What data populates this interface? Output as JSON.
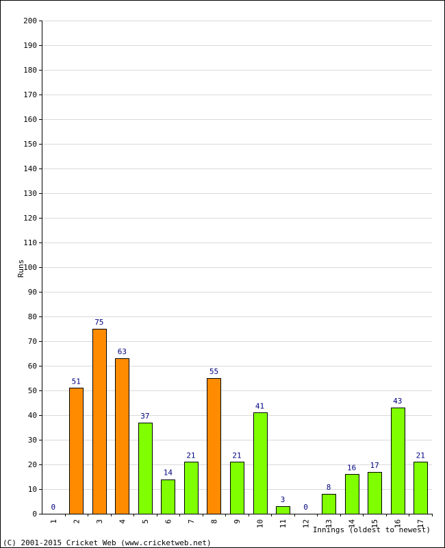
{
  "chart_data": {
    "type": "bar",
    "ylabel": "Runs",
    "xlabel": "Innings (oldest to newest)",
    "ylim": [
      0,
      200
    ],
    "ytick_step": 10,
    "grid": true,
    "categories": [
      "1",
      "2",
      "3",
      "4",
      "5",
      "6",
      "7",
      "8",
      "9",
      "10",
      "11",
      "12",
      "13",
      "14",
      "15",
      "16",
      "17"
    ],
    "values": [
      0,
      51,
      75,
      63,
      37,
      14,
      21,
      55,
      21,
      41,
      3,
      0,
      8,
      16,
      17,
      43,
      21
    ],
    "fifty_plus": [
      false,
      true,
      true,
      true,
      false,
      false,
      false,
      true,
      false,
      false,
      false,
      false,
      false,
      false,
      false,
      false,
      false
    ],
    "colors": {
      "under_fifty": "#80ff00",
      "fifty_plus": "#ff8c00",
      "bar_outline": "#000000",
      "data_label": "#000080",
      "grid": "#d9d9d9"
    }
  },
  "footer": {
    "copyright": "(C) 2001-2015 Cricket Web (www.cricketweb.net)"
  }
}
